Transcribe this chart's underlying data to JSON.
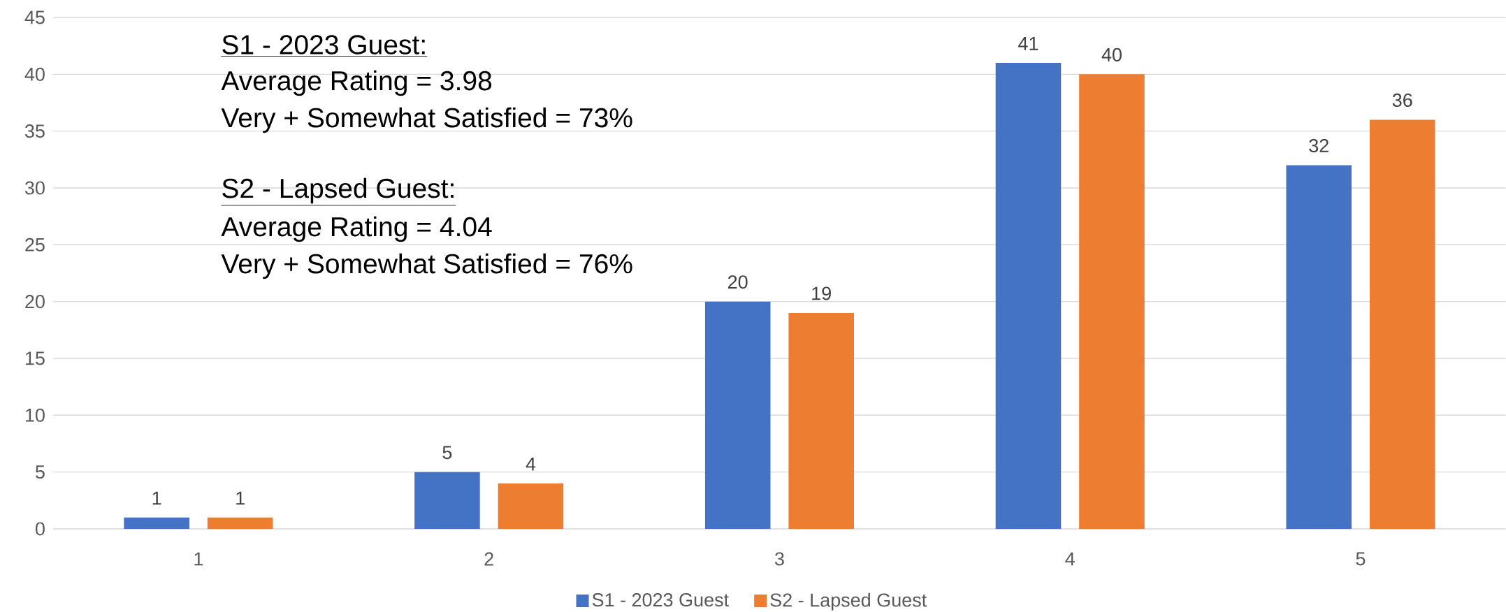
{
  "chart_data": {
    "type": "bar",
    "categories": [
      "1",
      "2",
      "3",
      "4",
      "5"
    ],
    "series": [
      {
        "name": "S1 - 2023 Guest",
        "color": "#4472c4",
        "values": [
          1,
          5,
          20,
          41,
          32
        ]
      },
      {
        "name": "S2 - Lapsed Guest",
        "color": "#ed7d31",
        "values": [
          1,
          4,
          19,
          40,
          36
        ]
      }
    ],
    "ylim": [
      0,
      45
    ],
    "yticks": [
      0,
      5,
      10,
      15,
      20,
      25,
      30,
      35,
      40,
      45
    ],
    "grid": "y",
    "legend": "bottom",
    "data_labels": true,
    "annotations": [
      "S1 - 2023 Guest:",
      "Average Rating = 3.98",
      "Very + Somewhat Satisfied = 73%",
      "S2 - Lapsed Guest:",
      "Average Rating = 4.04",
      "Very + Somewhat Satisfied = 76%"
    ]
  }
}
